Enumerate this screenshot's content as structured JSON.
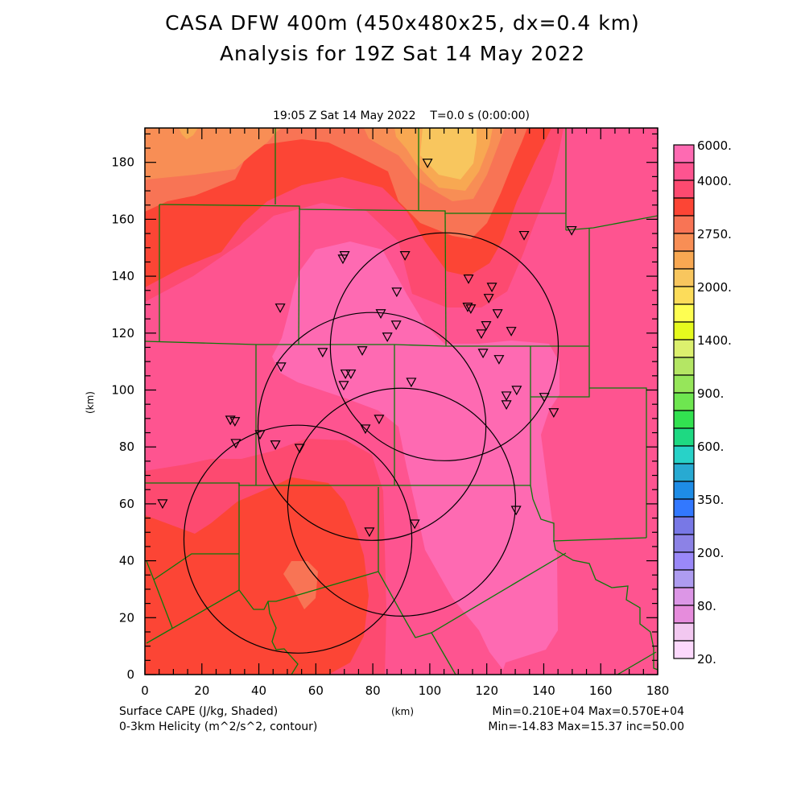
{
  "header": {
    "title_line1": "CASA DFW 400m (450x480x25, dx=0.4 km)",
    "title_line2": "Analysis for 19Z Sat 14 May 2022",
    "subtitle": "19:05 Z Sat 14 May 2022    T=0.0 s (0:00:00)"
  },
  "footer": {
    "shaded_label": "Surface CAPE (J/kg, Shaded)",
    "contour_label": "0-3km Helicity (m^2/s^2, contour)",
    "xlabel": "(km)",
    "shaded_stats": "Min=0.210E+04 Max=0.570E+04",
    "contour_stats": "Min=-14.83 Max=15.37 inc=50.00"
  },
  "chart_data": {
    "type": "heatmap",
    "title": "CASA DFW 400m (450x480x25, dx=0.4 km) - Analysis for 19Z Sat 14 May 2022",
    "xlabel": "(km)",
    "ylabel": "(km)",
    "xlim": [
      0,
      180
    ],
    "ylim": [
      0,
      192
    ],
    "x_ticks": [
      "0",
      "20",
      "40",
      "60",
      "80",
      "100",
      "120",
      "140",
      "160",
      "180"
    ],
    "y_ticks": [
      "0",
      "20",
      "40",
      "60",
      "80",
      "100",
      "120",
      "140",
      "160",
      "180"
    ],
    "x_tick_values": [
      0,
      20,
      40,
      60,
      80,
      100,
      120,
      140,
      160,
      180
    ],
    "y_tick_values": [
      0,
      20,
      40,
      60,
      80,
      100,
      120,
      140,
      160,
      180
    ],
    "minor_tick_step": 5,
    "field": "Surface CAPE (J/kg)",
    "field_min": 2100,
    "field_max": 5700,
    "colorbar": {
      "placement": "right",
      "labels": [
        "6000.",
        "4000.",
        "2750.",
        "2000.",
        "1400.",
        "900.",
        "600.",
        "350.",
        "200.",
        "80.",
        "20."
      ],
      "label_box_edges": [
        0,
        2,
        5,
        8,
        11,
        14,
        17,
        20,
        23,
        26,
        29
      ],
      "colors": [
        "#fe6ab2",
        "#fe5490",
        "#fd4a70",
        "#fc4535",
        "#f87455",
        "#f88e55",
        "#f8a852",
        "#f8c65e",
        "#fcdc5a",
        "#fefe52",
        "#e6fa1e",
        "#dcf06e",
        "#b4e664",
        "#96e65a",
        "#6ee650",
        "#32e150",
        "#1ed982",
        "#28d2c8",
        "#28aad2",
        "#1e8ce6",
        "#3278ff",
        "#7878e6",
        "#8c82e6",
        "#9a88f8",
        "#ae9cf0",
        "#dc96e6",
        "#e68cdc",
        "#f2c8f0",
        "#fcd8fc"
      ]
    },
    "region_colors": {
      "base": "#fe5490",
      "light_pink": "#fe6ab2",
      "red_pink": "#fd4a70",
      "red": "#fc4535",
      "orange_red": "#f87455",
      "orange": "#f88e55",
      "light_orange": "#f8a852",
      "yellow_orange": "#f8c65e"
    },
    "county_line_color": "#0a7a0a",
    "contour_color": "#000000",
    "range_rings_km": [
      {
        "cx": 105.1,
        "cy": 115.2,
        "r": 40
      },
      {
        "cx": 79.7,
        "cy": 87.2,
        "r": 40
      },
      {
        "cx": 53.7,
        "cy": 47.6,
        "r": 40
      },
      {
        "cx": 90.1,
        "cy": 60.6,
        "r": 40
      }
    ],
    "stations_km": [
      [
        99.2,
        179.7
      ],
      [
        133.1,
        154.3
      ],
      [
        149.8,
        156.0
      ],
      [
        70.1,
        147.2
      ],
      [
        69.5,
        146.0
      ],
      [
        91.3,
        147.2
      ],
      [
        113.6,
        139.0
      ],
      [
        47.5,
        128.8
      ],
      [
        121.8,
        136.1
      ],
      [
        120.7,
        132.2
      ],
      [
        113.3,
        129.1
      ],
      [
        114.4,
        128.5
      ],
      [
        123.8,
        126.8
      ],
      [
        88.4,
        134.4
      ],
      [
        82.8,
        126.8
      ],
      [
        119.8,
        122.6
      ],
      [
        118.1,
        119.7
      ],
      [
        128.6,
        120.6
      ],
      [
        88.2,
        122.8
      ],
      [
        85.1,
        118.6
      ],
      [
        76.3,
        113.8
      ],
      [
        62.4,
        113.2
      ],
      [
        118.7,
        112.9
      ],
      [
        124.3,
        110.7
      ],
      [
        70.4,
        105.6
      ],
      [
        72.3,
        105.6
      ],
      [
        69.8,
        101.6
      ],
      [
        93.5,
        102.7
      ],
      [
        47.8,
        108.1
      ],
      [
        130.5,
        99.9
      ],
      [
        126.9,
        97.9
      ],
      [
        126.9,
        94.8
      ],
      [
        140.2,
        97.4
      ],
      [
        143.5,
        92.0
      ],
      [
        30.0,
        89.4
      ],
      [
        31.6,
        88.9
      ],
      [
        77.4,
        86.3
      ],
      [
        82.2,
        89.7
      ],
      [
        31.9,
        81.2
      ],
      [
        40.4,
        84.3
      ],
      [
        45.8,
        80.7
      ],
      [
        54.3,
        79.5
      ],
      [
        6.2,
        60.0
      ],
      [
        130.3,
        57.7
      ],
      [
        94.7,
        52.9
      ],
      [
        78.8,
        50.1
      ]
    ]
  }
}
